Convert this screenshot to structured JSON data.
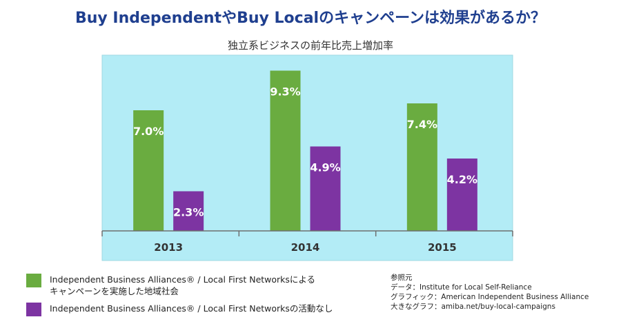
{
  "title": "Buy IndependentやBuy Localのキャンペーンは効果があるか？",
  "colors": {
    "plot_background": "#b3ecf6",
    "series_with": "#6aac40",
    "series_without": "#7d34a2",
    "title": "#1f3f8f"
  },
  "chart_data": {
    "type": "bar",
    "title": "独立系ビジネスの前年比売上増加率",
    "categories": [
      "2013",
      "2014",
      "2015"
    ],
    "series": [
      {
        "name": "Independent Business Alliances® / Local First Networksによるキャンペーンを実施した地域社会",
        "values": [
          7.0,
          9.3,
          7.4
        ],
        "labels": [
          "7.0%",
          "9.3%",
          "7.4%"
        ]
      },
      {
        "name": "Independent Business Alliances® / Local First Networksの活動なし",
        "values": [
          2.3,
          4.9,
          4.2
        ],
        "labels": [
          "2.3%",
          "4.9%",
          "4.2%"
        ]
      }
    ],
    "ylim": [
      0,
      10
    ],
    "unit": "%",
    "grid": false,
    "legend_position": "bottom-left"
  },
  "legend": [
    {
      "lines": [
        "Independent Business Alliances® / Local First Networksによる",
        "キャンペーンを実施した地域社会"
      ]
    },
    {
      "lines": [
        "Independent Business Alliances® / Local First Networksの活動なし"
      ]
    }
  ],
  "source": {
    "heading": "参照元",
    "data_line": "データ：Institute for Local Self-Reliance",
    "graphic_line": "グラフィック：American Independent Business Alliance",
    "large_graph_line": "大きなグラフ：amiba.net/buy-local-campaigns"
  }
}
